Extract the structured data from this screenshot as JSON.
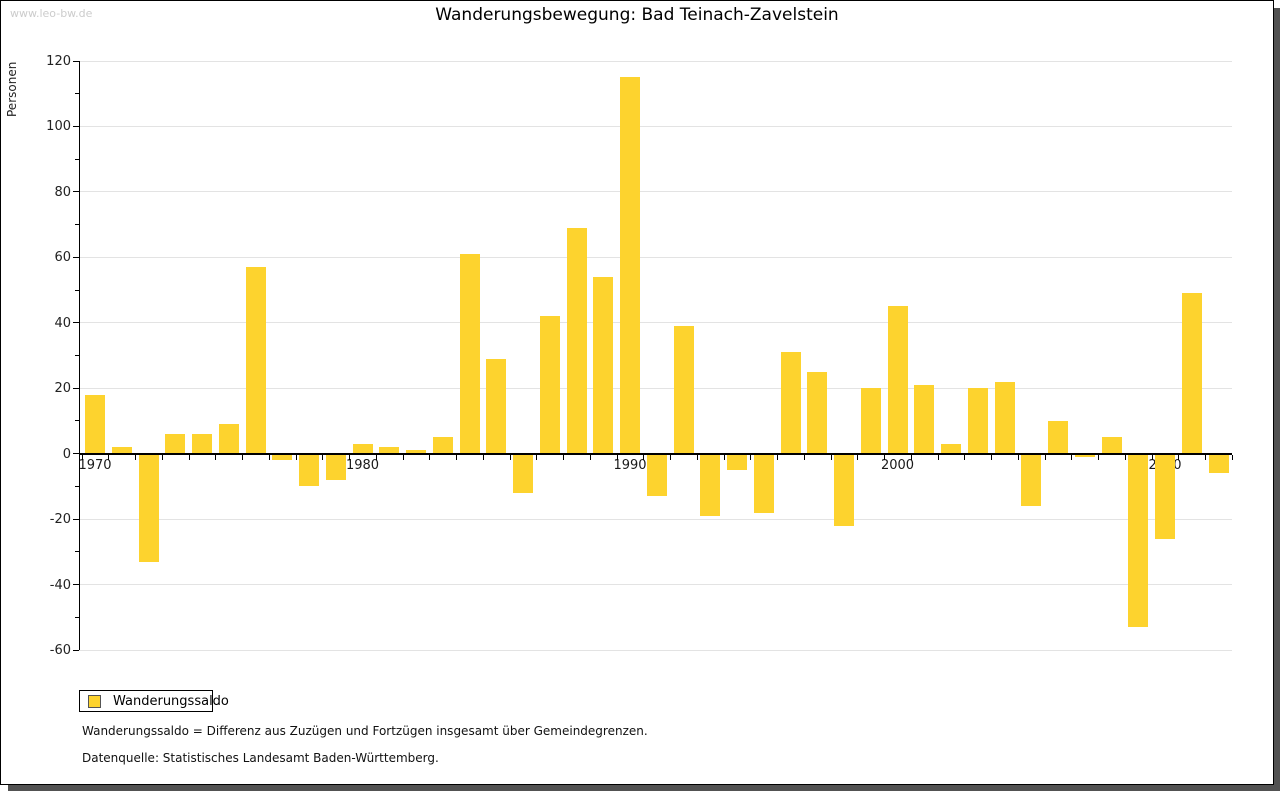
{
  "watermark": "www.leo-bw.de",
  "title": "Wanderungsbewegung: Bad Teinach-Zavelstein",
  "y_axis_label": "Personen",
  "legend": {
    "label": "Wanderungssaldo"
  },
  "footnotes": {
    "definition": "Wanderungssaldo = Differenz aus Zuzügen und Fortzügen insgesamt über Gemeindegrenzen.",
    "source": "Datenquelle: Statistisches Landesamt Baden-Württemberg."
  },
  "colors": {
    "bar": "#fdd32e",
    "grid": "#e3e3e3",
    "axis": "#000000",
    "shadow": "#525252",
    "watermark": "#cccccc"
  },
  "chart_data": {
    "type": "bar",
    "title": "Wanderungsbewegung: Bad Teinach-Zavelstein",
    "xlabel": "",
    "ylabel": "Personen",
    "series_name": "Wanderungssaldo",
    "x": [
      1970,
      1971,
      1972,
      1973,
      1974,
      1975,
      1976,
      1977,
      1978,
      1979,
      1980,
      1981,
      1982,
      1983,
      1984,
      1985,
      1986,
      1987,
      1988,
      1989,
      1990,
      1991,
      1992,
      1993,
      1994,
      1995,
      1996,
      1997,
      1998,
      1999,
      2000,
      2001,
      2002,
      2003,
      2004,
      2005,
      2006,
      2007,
      2008,
      2009,
      2010,
      2011,
      2012
    ],
    "values": [
      18,
      2,
      -33,
      6,
      6,
      9,
      57,
      -2,
      -10,
      -8,
      3,
      2,
      1,
      5,
      61,
      29,
      -12,
      42,
      69,
      54,
      115,
      -13,
      39,
      -19,
      -5,
      -18,
      31,
      25,
      -22,
      20,
      45,
      21,
      3,
      20,
      22,
      -16,
      10,
      -1,
      5,
      -53,
      -26,
      49,
      -6
    ],
    "ylim": [
      -60,
      120
    ],
    "ytick_step": 20,
    "ytick_minor_step": 10,
    "xticks_labeled": [
      1970,
      1980,
      1990,
      2000,
      2010
    ],
    "grid": true,
    "legend_position": "bottom-left"
  }
}
